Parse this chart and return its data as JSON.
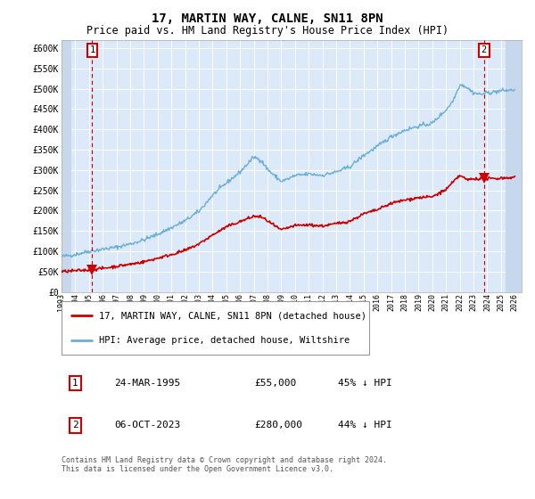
{
  "title": "17, MARTIN WAY, CALNE, SN11 8PN",
  "subtitle": "Price paid vs. HM Land Registry's House Price Index (HPI)",
  "xlim": [
    1993.0,
    2026.5
  ],
  "ylim": [
    0,
    620000
  ],
  "yticks": [
    0,
    50000,
    100000,
    150000,
    200000,
    250000,
    300000,
    350000,
    400000,
    450000,
    500000,
    550000,
    600000
  ],
  "ytick_labels": [
    "£0",
    "£50K",
    "£100K",
    "£150K",
    "£200K",
    "£250K",
    "£300K",
    "£350K",
    "£400K",
    "£450K",
    "£500K",
    "£550K",
    "£600K"
  ],
  "plot_bg_color": "#dce9f8",
  "outer_bg_color": "#ffffff",
  "grid_color": "#ffffff",
  "hpi_color": "#6baed6",
  "price_color": "#cc0000",
  "vline_color": "#cc0000",
  "point1_x": 1995.23,
  "point1_y": 55000,
  "point2_x": 2023.76,
  "point2_y": 280000,
  "legend_house": "17, MARTIN WAY, CALNE, SN11 8PN (detached house)",
  "legend_hpi": "HPI: Average price, detached house, Wiltshire",
  "annotation1_label": "1",
  "annotation1_date": "24-MAR-1995",
  "annotation1_price": "£55,000",
  "annotation1_hpi": "45% ↓ HPI",
  "annotation2_label": "2",
  "annotation2_date": "06-OCT-2023",
  "annotation2_price": "£280,000",
  "annotation2_hpi": "44% ↓ HPI",
  "footer": "Contains HM Land Registry data © Crown copyright and database right 2024.\nThis data is licensed under the Open Government Licence v3.0."
}
